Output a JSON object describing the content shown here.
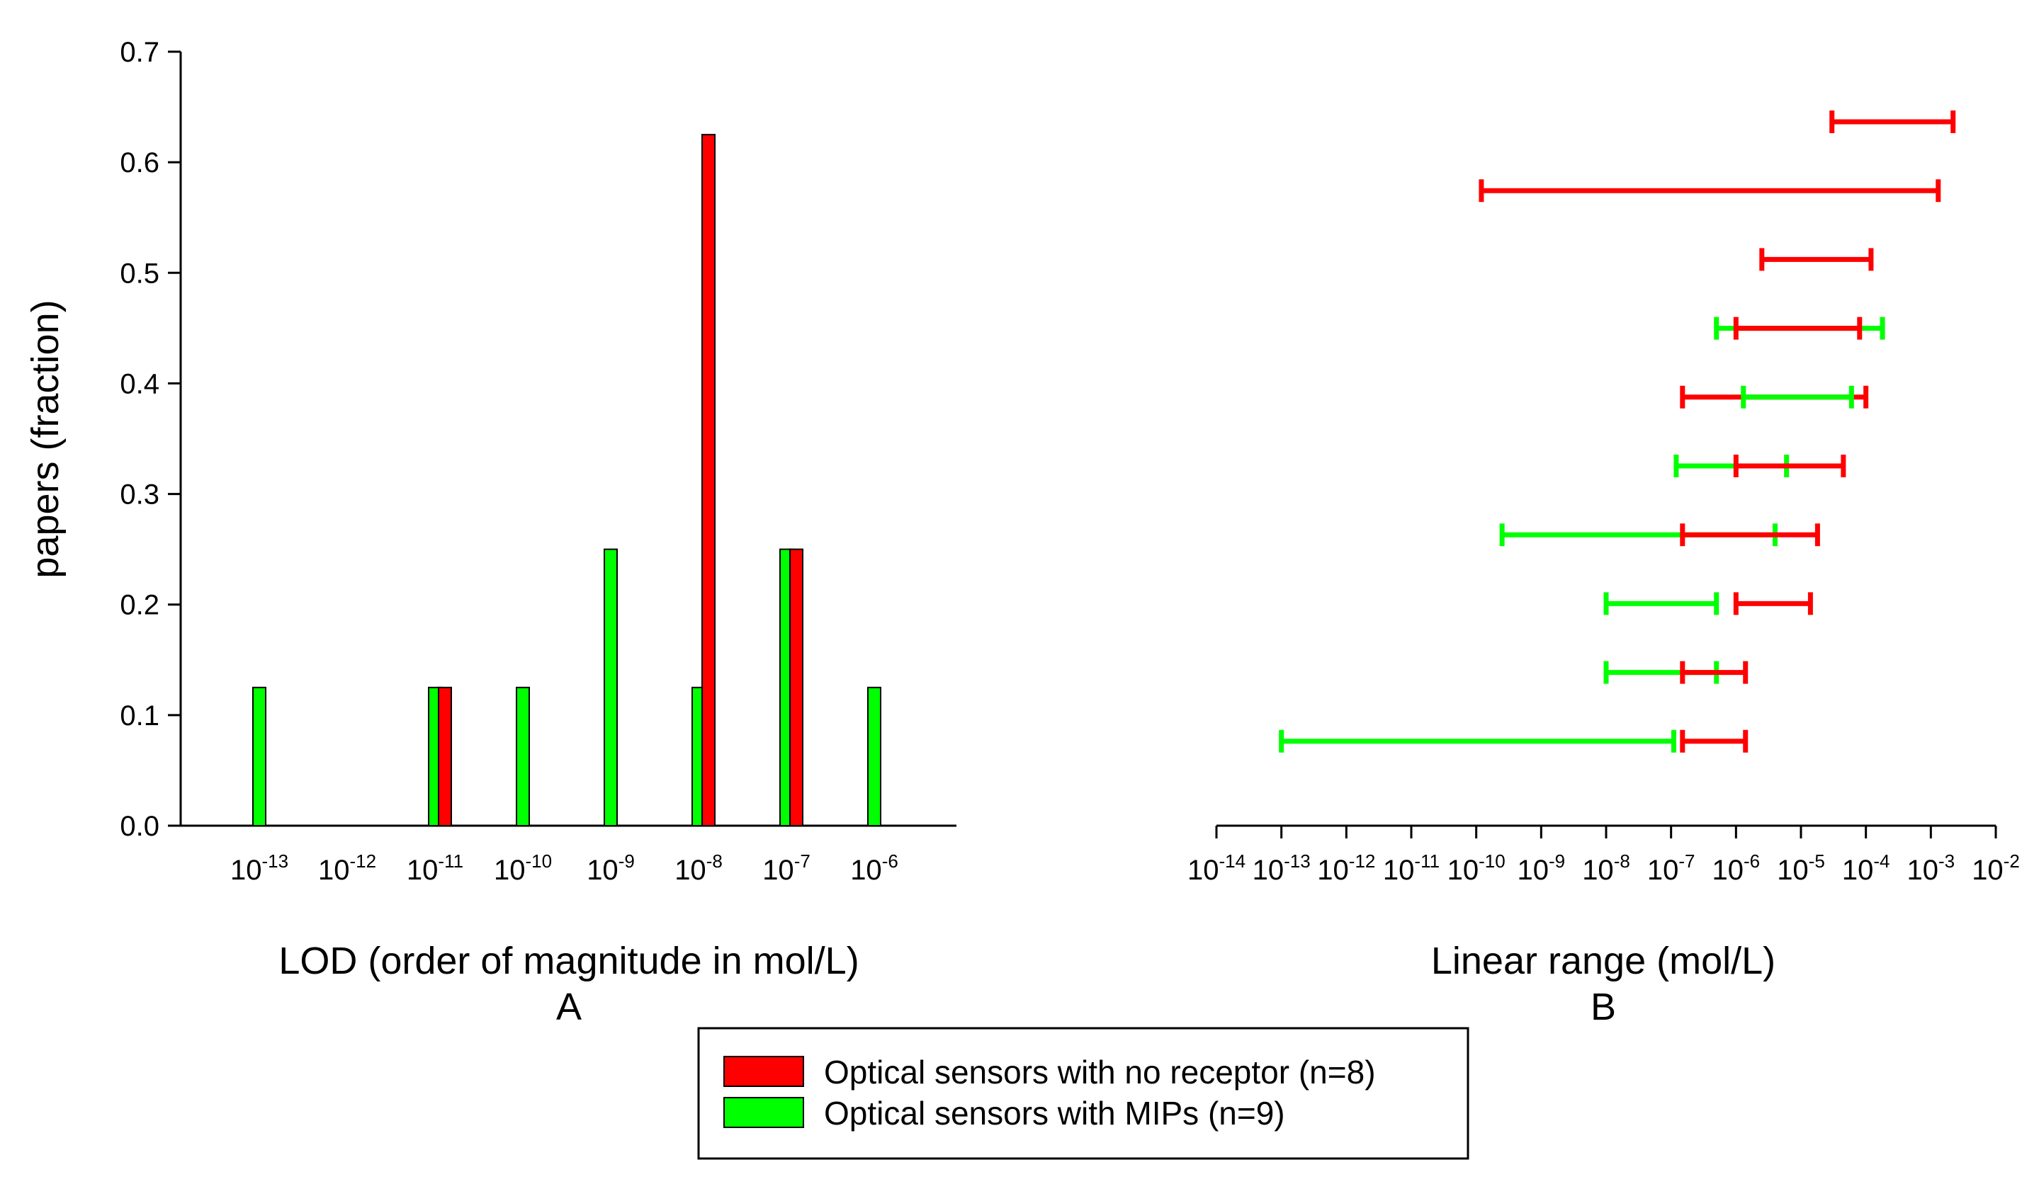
{
  "chart_data": [
    {
      "type": "bar",
      "panel_label": "A",
      "xlabel": "LOD (order of magnitude in mol/L)",
      "ylabel": "papers (fraction)",
      "ylim": [
        0,
        0.7
      ],
      "y_ticks": [
        "0.0",
        "0.1",
        "0.2",
        "0.3",
        "0.4",
        "0.5",
        "0.6",
        "0.7"
      ],
      "categories": [
        {
          "base": "10",
          "exp": "-13"
        },
        {
          "base": "10",
          "exp": "-12"
        },
        {
          "base": "10",
          "exp": "-11"
        },
        {
          "base": "10",
          "exp": "-10"
        },
        {
          "base": "10",
          "exp": "-9"
        },
        {
          "base": "10",
          "exp": "-8"
        },
        {
          "base": "10",
          "exp": "-7"
        },
        {
          "base": "10",
          "exp": "-6"
        }
      ],
      "series": [
        {
          "name": "Optical sensors with no receptor (n=8)",
          "color": "#ff0000",
          "values": [
            0,
            0,
            0.125,
            0,
            0,
            0.625,
            0.25,
            0
          ]
        },
        {
          "name": "Optical sensors with MIPs (n=9)",
          "color": "#00ff00",
          "values": [
            0.125,
            0,
            0.125,
            0.125,
            0.25,
            0.125,
            0.25,
            0.125
          ]
        }
      ],
      "grid": false
    },
    {
      "type": "range",
      "panel_label": "B",
      "xlabel": "Linear range (mol/L)",
      "x_scale": "log",
      "xlim": [
        1e-14,
        0.01
      ],
      "x_ticks": [
        {
          "base": "10",
          "exp": "-14"
        },
        {
          "base": "10",
          "exp": "-13"
        },
        {
          "base": "10",
          "exp": "-12"
        },
        {
          "base": "10",
          "exp": "-11"
        },
        {
          "base": "10",
          "exp": "-10"
        },
        {
          "base": "10",
          "exp": "-9"
        },
        {
          "base": "10",
          "exp": "-8"
        },
        {
          "base": "10",
          "exp": "-7"
        },
        {
          "base": "10",
          "exp": "-6"
        },
        {
          "base": "10",
          "exp": "-5"
        },
        {
          "base": "10",
          "exp": "-4"
        },
        {
          "base": "10",
          "exp": "-3"
        },
        {
          "base": "10",
          "exp": "-2"
        }
      ],
      "rows": [
        {
          "red": [
            3e-05,
            0.0022
          ]
        },
        {
          "red": [
            1.2e-10,
            0.0013
          ]
        },
        {
          "red": [
            2.5e-06,
            0.00012
          ]
        },
        {
          "green": [
            5e-07,
            0.00018
          ],
          "red": [
            1e-06,
            8e-05
          ]
        },
        {
          "red": [
            1.5e-07,
            0.0001
          ],
          "green": [
            1.3e-06,
            6e-05
          ]
        },
        {
          "green": [
            1.2e-07,
            6e-06
          ],
          "red": [
            1e-06,
            4.5e-05
          ]
        },
        {
          "green": [
            2.5e-10,
            4e-06
          ],
          "red": [
            1.5e-07,
            1.8e-05
          ]
        },
        {
          "green": [
            1e-08,
            5e-07
          ],
          "red": [
            1e-06,
            1.4e-05
          ]
        },
        {
          "green": [
            1e-08,
            5e-07
          ],
          "red": [
            1.5e-07,
            1.4e-06
          ]
        },
        {
          "green": [
            1e-13,
            1.1e-07
          ],
          "red": [
            1.5e-07,
            1.4e-06
          ]
        }
      ],
      "grid": false
    }
  ],
  "legend": {
    "placement": "bottom-center",
    "items": [
      {
        "label": "Optical sensors with no receptor (n=8)",
        "color": "#ff0000"
      },
      {
        "label": "Optical sensors with MIPs (n=9)",
        "color": "#00ff00"
      }
    ]
  }
}
